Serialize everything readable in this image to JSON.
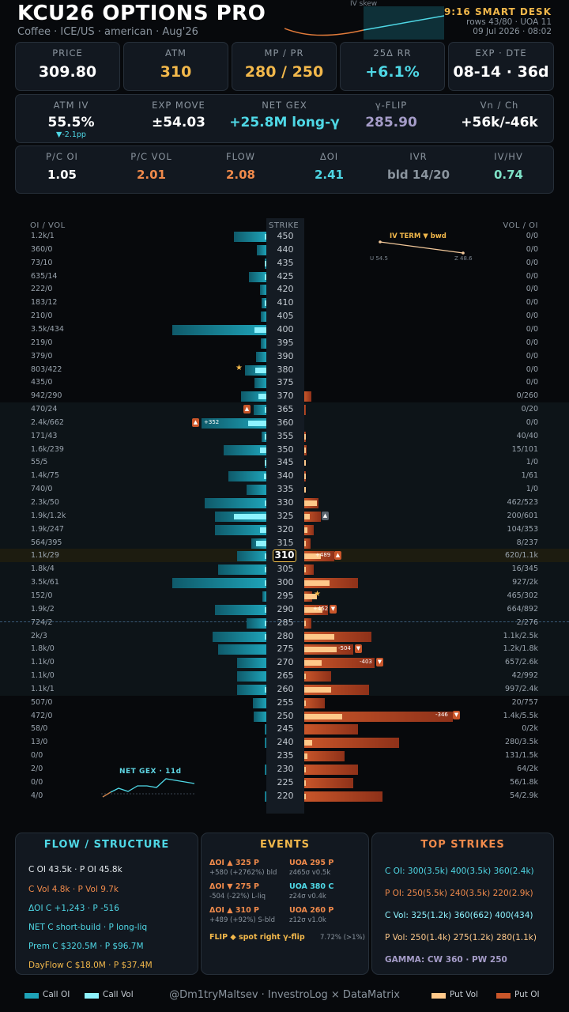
{
  "header": {
    "title": "KCU26 OPTIONS PRO",
    "subtitle": "Coffee · ICE/US · american · Aug'26",
    "iv_skew_label": "IV skew",
    "desk": "9:16 SMART DESK",
    "rows": "rows 43/80 · UOA 11",
    "timestamp": "09 Jul 2026 · 08:02"
  },
  "stats_row1": [
    {
      "label": "PRICE",
      "value": "309.80",
      "color": "#ffffff"
    },
    {
      "label": "ATM",
      "value": "310",
      "color": "#f2b84b"
    },
    {
      "label": "MP / PR",
      "value": "280 / 250",
      "color": "#f2b84b"
    },
    {
      "label": "25Δ RR",
      "value": "+6.1%",
      "color": "#4fd8e6"
    },
    {
      "label": "EXP · DTE",
      "value": "08-14 · 36d",
      "color": "#ffffff"
    }
  ],
  "stats_row2": [
    {
      "label": "ATM IV",
      "value": "55.5%",
      "color": "#ffffff",
      "sub": "▼-2.1pp"
    },
    {
      "label": "EXP MOVE",
      "value": "±54.03",
      "color": "#ffffff"
    },
    {
      "label": "NET GEX",
      "value": "+25.8M long-γ",
      "color": "#4fd8e6"
    },
    {
      "label": "γ-FLIP",
      "value": "285.90",
      "color": "#a59cc8"
    },
    {
      "label": "Vn / Ch",
      "value": "+56k/-46k",
      "color": "#ffffff"
    }
  ],
  "stats_row3": [
    {
      "label": "P/C OI",
      "value": "1.05",
      "color": "#ffffff"
    },
    {
      "label": "P/C VOL",
      "value": "2.01",
      "color": "#f08a4b"
    },
    {
      "label": "FLOW",
      "value": "2.08",
      "color": "#f08a4b"
    },
    {
      "label": "ΔOI",
      "value": "2.41",
      "color": "#4fd8e6"
    },
    {
      "label": "IVR",
      "value": "bld 14/20",
      "color": "#8a949e"
    },
    {
      "label": "IV/HV",
      "value": "0.74",
      "color": "#7fe3c8"
    }
  ],
  "ladder": {
    "left_header": "OI / VOL",
    "strike_header": "STRIKE",
    "right_header": "VOL / OI",
    "atm_strike": "310",
    "rows": [
      {
        "strike": "450",
        "left": "1.2k/1",
        "right": "0/0",
        "coi": 1.2,
        "cvol": 0.001,
        "poi": 0,
        "pvol": 0
      },
      {
        "strike": "440",
        "left": "360/0",
        "right": "0/0",
        "coi": 0.36,
        "cvol": 0,
        "poi": 0,
        "pvol": 0
      },
      {
        "strike": "435",
        "left": "73/10",
        "right": "0/0",
        "coi": 0.073,
        "cvol": 0.01,
        "poi": 0,
        "pvol": 0
      },
      {
        "strike": "425",
        "left": "635/14",
        "right": "0/0",
        "coi": 0.635,
        "cvol": 0.014,
        "poi": 0,
        "pvol": 0
      },
      {
        "strike": "420",
        "left": "222/0",
        "right": "0/0",
        "coi": 0.222,
        "cvol": 0,
        "poi": 0,
        "pvol": 0
      },
      {
        "strike": "410",
        "left": "183/12",
        "right": "0/0",
        "coi": 0.183,
        "cvol": 0.012,
        "poi": 0,
        "pvol": 0
      },
      {
        "strike": "405",
        "left": "210/0",
        "right": "0/0",
        "coi": 0.21,
        "cvol": 0,
        "poi": 0,
        "pvol": 0
      },
      {
        "strike": "400",
        "left": "3.5k/434",
        "right": "0/0",
        "coi": 3.5,
        "cvol": 0.434,
        "poi": 0,
        "pvol": 0
      },
      {
        "strike": "395",
        "left": "219/0",
        "right": "0/0",
        "coi": 0.219,
        "cvol": 0,
        "poi": 0,
        "pvol": 0
      },
      {
        "strike": "390",
        "left": "379/0",
        "right": "0/0",
        "coi": 0.379,
        "cvol": 0,
        "poi": 0,
        "pvol": 0
      },
      {
        "strike": "380",
        "left": "803/422",
        "right": "0/0",
        "coi": 0.803,
        "cvol": 0.422,
        "poi": 0,
        "pvol": 0
      },
      {
        "strike": "375",
        "left": "435/0",
        "right": "0/0",
        "coi": 0.435,
        "cvol": 0,
        "poi": 0,
        "pvol": 0
      },
      {
        "strike": "370",
        "left": "942/290",
        "right": "0/260",
        "coi": 0.942,
        "cvol": 0.29,
        "poi": 0.26,
        "pvol": 0
      },
      {
        "strike": "365",
        "left": "470/24",
        "right": "0/20",
        "coi": 0.47,
        "cvol": 0.024,
        "poi": 0.02,
        "pvol": 0
      },
      {
        "strike": "360",
        "left": "2.4k/662",
        "right": "0/0",
        "coi": 2.4,
        "cvol": 0.662,
        "poi": 0,
        "pvol": 0
      },
      {
        "strike": "355",
        "left": "171/43",
        "right": "40/40",
        "coi": 0.171,
        "cvol": 0.043,
        "poi": 0.04,
        "pvol": 0.04
      },
      {
        "strike": "350",
        "left": "1.6k/239",
        "right": "15/101",
        "coi": 1.6,
        "cvol": 0.239,
        "poi": 0.101,
        "pvol": 0.015
      },
      {
        "strike": "345",
        "left": "55/5",
        "right": "1/0",
        "coi": 0.055,
        "cvol": 0.005,
        "poi": 0,
        "pvol": 0.001
      },
      {
        "strike": "340",
        "left": "1.4k/75",
        "right": "1/61",
        "coi": 1.4,
        "cvol": 0.075,
        "poi": 0.061,
        "pvol": 0.001
      },
      {
        "strike": "335",
        "left": "740/0",
        "right": "1/0",
        "coi": 0.74,
        "cvol": 0,
        "poi": 0,
        "pvol": 0.001
      },
      {
        "strike": "330",
        "left": "2.3k/50",
        "right": "462/523",
        "coi": 2.3,
        "cvol": 0.05,
        "poi": 0.523,
        "pvol": 0.462
      },
      {
        "strike": "325",
        "left": "1.9k/1.2k",
        "right": "200/601",
        "coi": 1.9,
        "cvol": 1.2,
        "poi": 0.601,
        "pvol": 0.2
      },
      {
        "strike": "320",
        "left": "1.9k/247",
        "right": "104/353",
        "coi": 1.9,
        "cvol": 0.247,
        "poi": 0.353,
        "pvol": 0.104
      },
      {
        "strike": "315",
        "left": "564/395",
        "right": "8/237",
        "coi": 0.564,
        "cvol": 0.395,
        "poi": 0.237,
        "pvol": 0.008
      },
      {
        "strike": "310",
        "left": "1.1k/29",
        "right": "620/1.1k",
        "coi": 1.1,
        "cvol": 0.029,
        "poi": 1.1,
        "pvol": 0.62
      },
      {
        "strike": "305",
        "left": "1.8k/4",
        "right": "16/345",
        "coi": 1.8,
        "cvol": 0.004,
        "poi": 0.345,
        "pvol": 0.016
      },
      {
        "strike": "300",
        "left": "3.5k/61",
        "right": "927/2k",
        "coi": 3.5,
        "cvol": 0.061,
        "poi": 2.0,
        "pvol": 0.927
      },
      {
        "strike": "295",
        "left": "152/0",
        "right": "465/302",
        "coi": 0.152,
        "cvol": 0,
        "poi": 0.302,
        "pvol": 0.465
      },
      {
        "strike": "290",
        "left": "1.9k/2",
        "right": "664/892",
        "coi": 1.9,
        "cvol": 0.002,
        "poi": 0.892,
        "pvol": 0.664
      },
      {
        "strike": "285",
        "left": "724/2",
        "right": "2/276",
        "coi": 0.724,
        "cvol": 0.002,
        "poi": 0.276,
        "pvol": 0.002
      },
      {
        "strike": "280",
        "left": "2k/3",
        "right": "1.1k/2.5k",
        "coi": 2.0,
        "cvol": 0.003,
        "poi": 2.5,
        "pvol": 1.1
      },
      {
        "strike": "275",
        "left": "1.8k/0",
        "right": "1.2k/1.8k",
        "coi": 1.8,
        "cvol": 0,
        "poi": 1.8,
        "pvol": 1.2
      },
      {
        "strike": "270",
        "left": "1.1k/0",
        "right": "657/2.6k",
        "coi": 1.1,
        "cvol": 0,
        "poi": 2.6,
        "pvol": 0.657
      },
      {
        "strike": "265",
        "left": "1.1k/0",
        "right": "42/992",
        "coi": 1.1,
        "cvol": 0,
        "poi": 0.992,
        "pvol": 0.042
      },
      {
        "strike": "260",
        "left": "1.1k/1",
        "right": "997/2.4k",
        "coi": 1.1,
        "cvol": 0.001,
        "poi": 2.4,
        "pvol": 0.997
      },
      {
        "strike": "255",
        "left": "507/0",
        "right": "20/757",
        "coi": 0.507,
        "cvol": 0,
        "poi": 0.757,
        "pvol": 0.02
      },
      {
        "strike": "250",
        "left": "472/0",
        "right": "1.4k/5.5k",
        "coi": 0.472,
        "cvol": 0,
        "poi": 5.5,
        "pvol": 1.4
      },
      {
        "strike": "245",
        "left": "58/0",
        "right": "0/2k",
        "coi": 0.058,
        "cvol": 0,
        "poi": 2.0,
        "pvol": 0
      },
      {
        "strike": "240",
        "left": "13/0",
        "right": "280/3.5k",
        "coi": 0.013,
        "cvol": 0,
        "poi": 3.5,
        "pvol": 0.28
      },
      {
        "strike": "235",
        "left": "0/0",
        "right": "131/1.5k",
        "coi": 0,
        "cvol": 0,
        "poi": 1.5,
        "pvol": 0.131
      },
      {
        "strike": "230",
        "left": "2/0",
        "right": "64/2k",
        "coi": 0.002,
        "cvol": 0,
        "poi": 2.0,
        "pvol": 0.064
      },
      {
        "strike": "225",
        "left": "0/0",
        "right": "56/1.8k",
        "coi": 0,
        "cvol": 0,
        "poi": 1.8,
        "pvol": 0.056
      },
      {
        "strike": "220",
        "left": "4/0",
        "right": "54/2.9k",
        "coi": 0.004,
        "cvol": 0,
        "poi": 2.9,
        "pvol": 0.054
      }
    ],
    "tags": [
      {
        "strike": "360",
        "text": "+352"
      },
      {
        "strike": "310",
        "text": "+489"
      },
      {
        "strike": "290",
        "text": "+452"
      },
      {
        "strike": "275",
        "text": "-504"
      },
      {
        "strike": "270",
        "text": "-403"
      },
      {
        "strike": "250",
        "text": "-346"
      }
    ]
  },
  "iv_term": {
    "label": "IV TERM  ▼ bwd",
    "left": "U 54.5",
    "right": "Z 48.6"
  },
  "net_gex_chart": {
    "label": "NET GEX · 11d"
  },
  "panels": {
    "flow": {
      "title": "FLOW / STRUCTURE",
      "lines": [
        {
          "text": "C OI 43.5k  ·  P OI 45.8k",
          "color": "#e6ebef"
        },
        {
          "text": "C Vol 4.8k  ·  P Vol 9.7k",
          "color": "#f08a4b"
        },
        {
          "text": "ΔOI C +1,243  ·  P -516",
          "color": "#4fd8e6"
        },
        {
          "text": "NET  C short-build  ·  P long-liq",
          "color": "#4fd8e6"
        },
        {
          "text": "Prem  C $320.5M  ·  P $96.7M",
          "color": "#4fd8e6"
        },
        {
          "text": "DayFlow  C $18.0M  ·  P $37.4M",
          "color": "#f2b84b"
        }
      ]
    },
    "events": {
      "title": "EVENTS",
      "items": [
        {
          "head": "ΔOI ▲ 325 P",
          "sub": "+580 (+2762%)  bld",
          "color": "#f08a4b"
        },
        {
          "head": "UOA 295 P",
          "sub": "z465σ v0.5k",
          "color": "#f08a4b"
        },
        {
          "head": "ΔOI ▼ 275 P",
          "sub": "-504 (-22%)  L-liq",
          "color": "#f08a4b"
        },
        {
          "head": "UOA 380 C",
          "sub": "z24σ v0.4k",
          "color": "#4fd8e6"
        },
        {
          "head": "ΔOI ▲ 310 P",
          "sub": "+489 (+92%)  S-bld",
          "color": "#f08a4b"
        },
        {
          "head": "UOA 260 P",
          "sub": "z12σ v1.0k",
          "color": "#f08a4b"
        }
      ],
      "flip": "FLIP ◆ spot right γ-flip",
      "flip_pct": "7.72% (>1%)"
    },
    "top": {
      "title": "TOP STRIKES",
      "lines": [
        {
          "text": "C OI: 300(3.5k)  400(3.5k)  360(2.4k)",
          "color": "#4fd8e6"
        },
        {
          "text": "P OI: 250(5.5k)  240(3.5k)  220(2.9k)",
          "color": "#f08a4b"
        },
        {
          "text": "C Vol: 325(1.2k)  360(662)  400(434)",
          "color": "#8ef3ff"
        },
        {
          "text": "P Vol: 250(1.4k)  275(1.2k)  280(1.1k)",
          "color": "#ffc98a"
        },
        {
          "text": "GAMMA: CW 360 · PW 250",
          "color": "#a59cc8"
        }
      ]
    }
  },
  "footer": {
    "legend": [
      "Call OI",
      "Call Vol",
      "Put Vol",
      "Put OI"
    ],
    "credit": "@Dm1tryMaltsev  ·  InvestroLog × DataMatrix"
  }
}
